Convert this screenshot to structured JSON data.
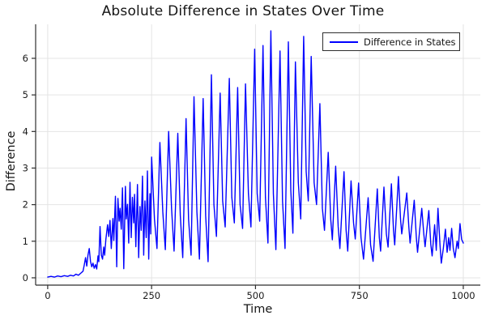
{
  "colors": {
    "line": "#0000ff",
    "grid": "#e4e4e4",
    "axis": "#2e2e2e",
    "text": "#1a1a1a",
    "legend_border": "#2e2e2e",
    "background": "#ffffff"
  },
  "chart_data": {
    "type": "line",
    "title": "Absolute Difference in States Over Time",
    "xlabel": "Time",
    "ylabel": "Difference",
    "x_ticks": [
      "0",
      "250",
      "500",
      "750",
      "1000"
    ],
    "x_tick_values": [
      0,
      250,
      500,
      750,
      1000
    ],
    "y_ticks": [
      "0",
      "1",
      "2",
      "3",
      "4",
      "5",
      "6"
    ],
    "y_tick_values": [
      0,
      1,
      2,
      3,
      4,
      5,
      6
    ],
    "xlim": [
      -29,
      1041
    ],
    "ylim": [
      -0.2,
      6.93
    ],
    "grid": true,
    "legend_position": "top-right",
    "series": [
      {
        "name": "Difference in States",
        "color": "#0000ff",
        "points": [
          [
            0,
            0.02
          ],
          [
            8,
            0.04
          ],
          [
            16,
            0.02
          ],
          [
            24,
            0.05
          ],
          [
            32,
            0.03
          ],
          [
            40,
            0.06
          ],
          [
            48,
            0.04
          ],
          [
            55,
            0.07
          ],
          [
            62,
            0.05
          ],
          [
            68,
            0.1
          ],
          [
            74,
            0.07
          ],
          [
            80,
            0.13
          ],
          [
            85,
            0.18
          ],
          [
            88,
            0.35
          ],
          [
            91,
            0.55
          ],
          [
            94,
            0.32
          ],
          [
            97,
            0.62
          ],
          [
            100,
            0.8
          ],
          [
            103,
            0.45
          ],
          [
            106,
            0.3
          ],
          [
            109,
            0.4
          ],
          [
            112,
            0.26
          ],
          [
            115,
            0.36
          ],
          [
            118,
            0.24
          ],
          [
            121,
            0.6
          ],
          [
            123,
            0.44
          ],
          [
            126,
            1.4
          ],
          [
            129,
            0.62
          ],
          [
            132,
            0.51
          ],
          [
            135,
            0.84
          ],
          [
            137,
            0.62
          ],
          [
            140,
            1.05
          ],
          [
            144,
            1.45
          ],
          [
            147,
            1.13
          ],
          [
            150,
            1.57
          ],
          [
            153,
            0.8
          ],
          [
            157,
            1.62
          ],
          [
            159,
            1.02
          ],
          [
            163,
            2.23
          ],
          [
            166,
            0.3
          ],
          [
            169,
            2.17
          ],
          [
            172,
            1.55
          ],
          [
            174,
            1.9
          ],
          [
            177,
            1.33
          ],
          [
            180,
            2.46
          ],
          [
            183,
            0.25
          ],
          [
            187,
            2.5
          ],
          [
            189,
            1.61
          ],
          [
            192,
            2.01
          ],
          [
            195,
            0.95
          ],
          [
            198,
            2.61
          ],
          [
            201,
            1.1
          ],
          [
            204,
            2.2
          ],
          [
            207,
            1.5
          ],
          [
            209,
            2.28
          ],
          [
            212,
            0.85
          ],
          [
            216,
            2.55
          ],
          [
            219,
            0.55
          ],
          [
            222,
            1.95
          ],
          [
            225,
            1.3
          ],
          [
            228,
            2.78
          ],
          [
            231,
            0.62
          ],
          [
            234,
            2.1
          ],
          [
            237,
            1.1
          ],
          [
            240,
            2.92
          ],
          [
            243,
            0.51
          ],
          [
            246,
            2.3
          ],
          [
            248,
            1.2
          ],
          [
            250,
            3.3
          ],
          [
            257,
            1.6
          ],
          [
            263,
            0.8
          ],
          [
            270,
            3.7
          ],
          [
            277,
            1.8
          ],
          [
            283,
            0.77
          ],
          [
            291,
            4.0
          ],
          [
            298,
            1.9
          ],
          [
            304,
            0.73
          ],
          [
            313,
            3.95
          ],
          [
            319,
            1.7
          ],
          [
            325,
            0.55
          ],
          [
            333,
            4.35
          ],
          [
            339,
            1.6
          ],
          [
            345,
            0.62
          ],
          [
            352,
            4.95
          ],
          [
            359,
            1.8
          ],
          [
            365,
            0.51
          ],
          [
            374,
            4.9
          ],
          [
            380,
            1.7
          ],
          [
            386,
            0.44
          ],
          [
            394,
            5.55
          ],
          [
            400,
            2.0
          ],
          [
            406,
            1.13
          ],
          [
            415,
            5.05
          ],
          [
            421,
            2.1
          ],
          [
            427,
            1.39
          ],
          [
            437,
            5.45
          ],
          [
            443,
            2.2
          ],
          [
            449,
            1.5
          ],
          [
            457,
            5.2
          ],
          [
            463,
            2.0
          ],
          [
            469,
            1.35
          ],
          [
            476,
            5.3
          ],
          [
            483,
            2.3
          ],
          [
            489,
            1.39
          ],
          [
            498,
            6.25
          ],
          [
            504,
            2.3
          ],
          [
            510,
            1.55
          ],
          [
            518,
            6.35
          ],
          [
            524,
            2.2
          ],
          [
            530,
            0.95
          ],
          [
            537,
            6.75
          ],
          [
            543,
            2.3
          ],
          [
            549,
            0.77
          ],
          [
            559,
            6.2
          ],
          [
            565,
            2.1
          ],
          [
            571,
            0.8
          ],
          [
            579,
            6.45
          ],
          [
            585,
            2.4
          ],
          [
            590,
            1.22
          ],
          [
            596,
            5.9
          ],
          [
            603,
            2.6
          ],
          [
            609,
            1.61
          ],
          [
            616,
            6.6
          ],
          [
            622,
            2.9
          ],
          [
            627,
            2.1
          ],
          [
            634,
            6.05
          ],
          [
            641,
            2.6
          ],
          [
            647,
            2.0
          ],
          [
            655,
            4.76
          ],
          [
            661,
            1.9
          ],
          [
            666,
            1.3
          ],
          [
            675,
            3.43
          ],
          [
            681,
            1.6
          ],
          [
            685,
            1.04
          ],
          [
            693,
            3.05
          ],
          [
            699,
            1.4
          ],
          [
            703,
            0.8
          ],
          [
            713,
            2.9
          ],
          [
            718,
            1.3
          ],
          [
            722,
            0.73
          ],
          [
            730,
            2.65
          ],
          [
            736,
            1.5
          ],
          [
            740,
            1.06
          ],
          [
            748,
            2.59
          ],
          [
            754,
            1.1
          ],
          [
            760,
            0.51
          ],
          [
            771,
            2.19
          ],
          [
            777,
            0.9
          ],
          [
            783,
            0.45
          ],
          [
            793,
            2.43
          ],
          [
            798,
            1.1
          ],
          [
            801,
            0.73
          ],
          [
            809,
            2.48
          ],
          [
            815,
            1.2
          ],
          [
            819,
            0.84
          ],
          [
            827,
            2.57
          ],
          [
            832,
            1.3
          ],
          [
            835,
            0.9
          ],
          [
            844,
            2.77
          ],
          [
            849,
            1.6
          ],
          [
            852,
            1.2
          ],
          [
            864,
            2.32
          ],
          [
            869,
            1.4
          ],
          [
            872,
            0.95
          ],
          [
            882,
            2.12
          ],
          [
            887,
            1.1
          ],
          [
            890,
            0.7
          ],
          [
            900,
            1.9
          ],
          [
            905,
            1.2
          ],
          [
            908,
            0.85
          ],
          [
            917,
            1.84
          ],
          [
            922,
            0.9
          ],
          [
            925,
            0.6
          ],
          [
            931,
            1.45
          ],
          [
            935,
            0.75
          ],
          [
            939,
            1.9
          ],
          [
            944,
            0.9
          ],
          [
            947,
            0.4
          ],
          [
            952,
            0.8
          ],
          [
            957,
            1.33
          ],
          [
            961,
            0.7
          ],
          [
            965,
            1.1
          ],
          [
            968,
            0.75
          ],
          [
            972,
            1.35
          ],
          [
            976,
            0.8
          ],
          [
            980,
            0.55
          ],
          [
            985,
            1.0
          ],
          [
            988,
            0.8
          ],
          [
            992,
            1.48
          ],
          [
            996,
            1.05
          ],
          [
            1000,
            0.95
          ]
        ]
      }
    ]
  }
}
